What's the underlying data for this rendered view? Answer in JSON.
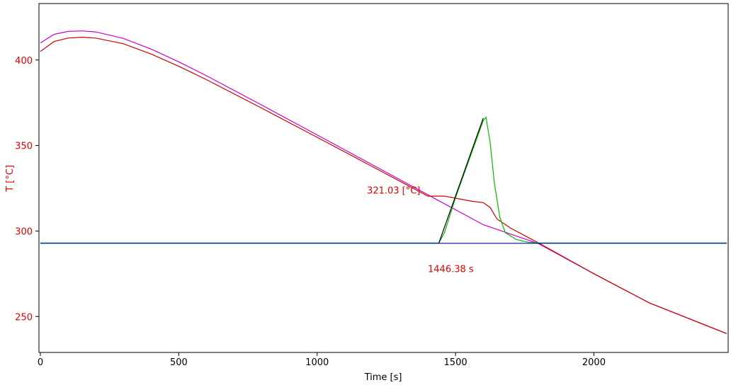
{
  "chart_data": {
    "type": "line",
    "xlabel": "Time [s]",
    "ylabel": "T  [°C]",
    "xlim": [
      0,
      2480
    ],
    "ylim": [
      229,
      433
    ],
    "xticks": [
      0,
      500,
      1000,
      1500,
      2000
    ],
    "yticks": [
      250,
      300,
      350,
      400
    ],
    "grid": false,
    "annotations": [
      {
        "text": "321.03 [°C]",
        "x": 1180,
        "y": 322
      },
      {
        "text": "1446.38 s",
        "x": 1400,
        "y": 276
      }
    ],
    "series": [
      {
        "color": "#cc00cc",
        "x": [
          0,
          50,
          100,
          150,
          200,
          300,
          400,
          500,
          600,
          800,
          1000,
          1200,
          1400,
          1600,
          1800,
          2000,
          2200,
          2480
        ],
        "y": [
          410.0,
          415.0,
          416.7,
          417.0,
          416.4,
          412.6,
          406.4,
          398.9,
          390.8,
          373.6,
          356.2,
          338.7,
          321.2,
          303.7,
          292.6,
          275.0,
          258.0,
          240.0
        ]
      },
      {
        "color": "#cc0000",
        "x": [
          0,
          50,
          100,
          150,
          200,
          300,
          400,
          500,
          600,
          800,
          1000,
          1200,
          1400,
          1460,
          1520,
          1560,
          1600,
          1625,
          1650,
          1700,
          1800,
          2000,
          2200,
          2480
        ],
        "y": [
          405.0,
          410.8,
          412.8,
          413.3,
          412.8,
          409.5,
          403.5,
          396.3,
          388.5,
          371.8,
          354.8,
          337.6,
          320.4,
          320.4,
          318.6,
          317.4,
          316.6,
          313.8,
          307.0,
          301.6,
          293.0,
          275.0,
          258.0,
          240.0
        ]
      },
      {
        "color": "#00bb00",
        "x": [
          0,
          1440,
          1460,
          1500,
          1550,
          1600,
          1610,
          1625,
          1640,
          1660,
          1680,
          1720,
          1760,
          1800,
          2480
        ],
        "y": [
          293,
          293,
          299.0,
          319.5,
          342.0,
          364.5,
          366.5,
          352.0,
          328.5,
          308.0,
          299.0,
          295.0,
          293.5,
          293,
          293
        ]
      },
      {
        "color": "#000000",
        "x": [
          1440,
          1600
        ],
        "y": [
          293,
          366
        ]
      },
      {
        "color": "#0000cc",
        "x": [
          0,
          2480
        ],
        "y": [
          292.8,
          292.8
        ]
      }
    ]
  }
}
